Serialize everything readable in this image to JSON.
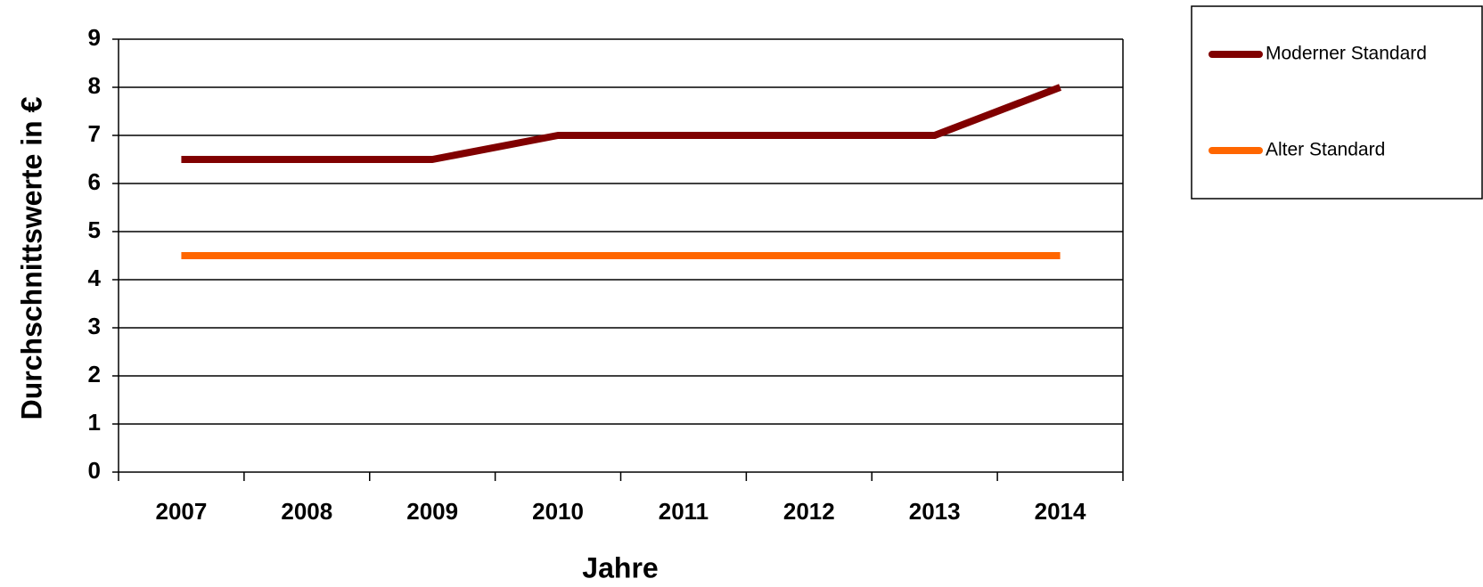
{
  "chart_data": {
    "type": "line",
    "x_label": "Jahre",
    "y_label": "Durchschnittswerte  in €",
    "categories": [
      "2007",
      "2008",
      "2009",
      "2010",
      "2011",
      "2012",
      "2013",
      "2014"
    ],
    "series": [
      {
        "name": "Moderner Standard",
        "color": "#800000",
        "values": [
          6.5,
          6.5,
          6.5,
          7,
          7,
          7,
          7,
          8
        ]
      },
      {
        "name": "Alter Standard",
        "color": "#ff6600",
        "values": [
          4.5,
          4.5,
          4.5,
          4.5,
          4.5,
          4.5,
          4.5,
          4.5
        ]
      }
    ],
    "ylim": [
      0,
      9
    ],
    "yticks": [
      0,
      1,
      2,
      3,
      4,
      5,
      6,
      7,
      8,
      9
    ],
    "grid": true,
    "legend": "right"
  }
}
